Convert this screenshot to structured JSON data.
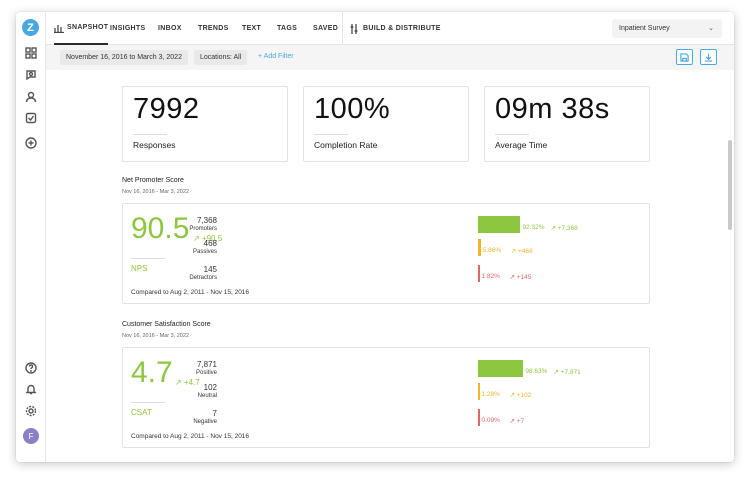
{
  "app": {
    "logo_letter": "Z",
    "avatar_initial": "F"
  },
  "rail": {
    "icons": [
      "dashboard-icon",
      "chat-search-icon",
      "user-icon",
      "task-check-icon",
      "add-icon",
      "help-icon",
      "bell-icon",
      "settings-icon"
    ]
  },
  "nav": {
    "tabs": [
      "SNAPSHOT",
      "INSIGHTS",
      "INBOX",
      "TRENDS",
      "TEXT",
      "TAGS",
      "SAVED"
    ],
    "build": "BUILD & DISTRIBUTE",
    "survey_select": "Inpatient Survey"
  },
  "filters": {
    "date_range": "November 16, 2016 to March 3, 2022",
    "locations": "Locations: All",
    "add_filter": "+ Add Filter"
  },
  "stats": [
    {
      "value": "7992",
      "label": "Responses"
    },
    {
      "value": "100%",
      "label": "Completion Rate"
    },
    {
      "value": "09m 38s",
      "label": "Average Time"
    }
  ],
  "nps": {
    "title": "Net Promoter Score",
    "date": "Nov 16, 2016 - Mar 3, 2022",
    "score": "90.5",
    "delta": "+90.5",
    "name": "NPS",
    "compare": "Compared to Aug 2, 2011 - Nov 15, 2016",
    "rows": [
      {
        "count": "7,368",
        "label": "Promoters",
        "pct": "92.32%",
        "delta": "+7,368",
        "fraction": 0.9232,
        "color": "#8dc63f"
      },
      {
        "count": "468",
        "label": "Passives",
        "pct": "5.86%",
        "delta": "+468",
        "fraction": 0.0586,
        "color": "#f0b429"
      },
      {
        "count": "145",
        "label": "Detractors",
        "pct": "1.82%",
        "delta": "+145",
        "fraction": 0.0182,
        "color": "#e06666"
      }
    ]
  },
  "csat": {
    "title": "Customer Satisfaction Score",
    "date": "Nov 16, 2016 - Mar 3, 2022",
    "score": "4.7",
    "delta": "+4.7",
    "name": "CSAT",
    "compare": "Compared to Aug 2, 2011 - Nov 15, 2016",
    "rows": [
      {
        "count": "7,871",
        "label": "Positive",
        "pct": "98.63%",
        "delta": "+7,871",
        "fraction": 0.9863,
        "color": "#8dc63f"
      },
      {
        "count": "102",
        "label": "Neutral",
        "pct": "1.28%",
        "delta": "+102",
        "fraction": 0.0128,
        "color": "#f0b429"
      },
      {
        "count": "7",
        "label": "Negative",
        "pct": "0.09%",
        "delta": "+7",
        "fraction": 0.0009,
        "color": "#e06666"
      }
    ]
  }
}
